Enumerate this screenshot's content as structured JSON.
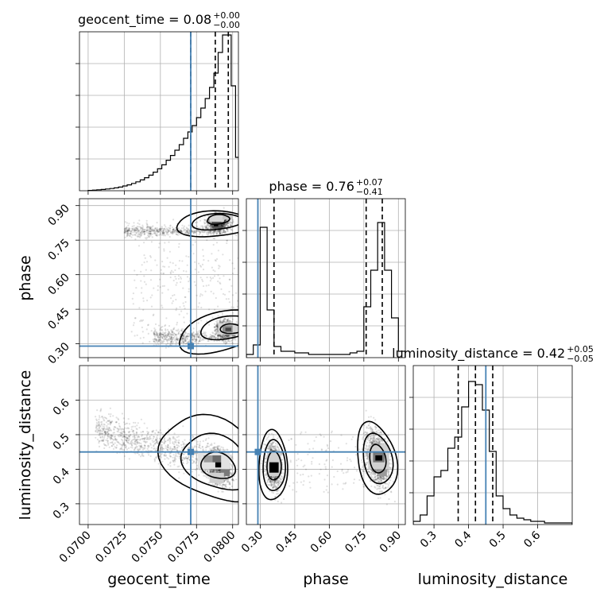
{
  "chart_data": {
    "type": "corner",
    "parameters": [
      "geocent_time",
      "phase",
      "luminosity_distance"
    ],
    "truth_color": "#4682b4",
    "panels": {
      "diag": [
        {
          "param": "geocent_time",
          "title_prefix": "geocent_time = 0.08",
          "title_sup": "+0.00",
          "title_sub": "−0.00",
          "xlim": [
            0.0694,
            0.0804
          ],
          "ylim": [
            0,
            1.0
          ],
          "bin_edges": [
            0.07,
            0.0703,
            0.0706,
            0.0709,
            0.0712,
            0.0715,
            0.0718,
            0.0721,
            0.0724,
            0.0727,
            0.073,
            0.0733,
            0.0736,
            0.0739,
            0.0742,
            0.0745,
            0.0748,
            0.0751,
            0.0754,
            0.0757,
            0.076,
            0.0763,
            0.0766,
            0.0769,
            0.0772,
            0.0775,
            0.0778,
            0.0781,
            0.0784,
            0.0787,
            0.079,
            0.0793,
            0.0796,
            0.0799,
            0.0802,
            0.0805
          ],
          "counts": [
            0.002,
            0.004,
            0.006,
            0.008,
            0.011,
            0.014,
            0.018,
            0.023,
            0.03,
            0.037,
            0.046,
            0.056,
            0.068,
            0.082,
            0.098,
            0.117,
            0.138,
            0.163,
            0.192,
            0.222,
            0.255,
            0.29,
            0.33,
            0.37,
            0.41,
            0.46,
            0.52,
            0.58,
            0.65,
            0.74,
            0.87,
            0.98,
            0.98,
            0.66,
            0.21
          ],
          "quantiles": [
            0.0771,
            0.0788,
            0.0797
          ],
          "truth": 0.0771,
          "yticks": [
            0.2,
            0.4,
            0.6,
            0.8
          ]
        },
        {
          "param": "phase",
          "title_prefix": "phase = 0.76",
          "title_sup": "+0.07",
          "title_sub": "−0.41",
          "xlim": [
            0.24,
            0.93
          ],
          "ylim": [
            0,
            1.0
          ],
          "bin_edges": [
            0.24,
            0.27,
            0.3,
            0.33,
            0.36,
            0.39,
            0.42,
            0.45,
            0.48,
            0.51,
            0.54,
            0.57,
            0.6,
            0.63,
            0.66,
            0.69,
            0.72,
            0.75,
            0.78,
            0.81,
            0.84,
            0.87,
            0.9,
            0.93
          ],
          "counts": [
            0.02,
            0.08,
            0.82,
            0.3,
            0.07,
            0.04,
            0.04,
            0.03,
            0.03,
            0.02,
            0.02,
            0.02,
            0.02,
            0.02,
            0.02,
            0.03,
            0.04,
            0.32,
            0.55,
            0.85,
            0.55,
            0.25,
            0.04
          ],
          "quantiles": [
            0.36,
            0.76,
            0.83
          ],
          "truth": 0.29,
          "yticks": [
            0.2,
            0.4,
            0.6,
            0.8
          ]
        },
        {
          "param": "luminosity_distance",
          "title_prefix": "luminosity_distance = 0.42",
          "title_sup": "+0.05",
          "title_sub": "−0.05",
          "xlim": [
            0.24,
            0.7
          ],
          "ylim": [
            0,
            1.0
          ],
          "bin_edges": [
            0.24,
            0.26,
            0.28,
            0.3,
            0.32,
            0.34,
            0.36,
            0.38,
            0.4,
            0.42,
            0.44,
            0.46,
            0.48,
            0.5,
            0.52,
            0.54,
            0.56,
            0.58,
            0.6,
            0.62,
            0.64,
            0.66,
            0.68,
            0.7
          ],
          "counts": [
            0.02,
            0.06,
            0.18,
            0.3,
            0.34,
            0.48,
            0.55,
            0.74,
            0.9,
            0.88,
            0.72,
            0.46,
            0.18,
            0.1,
            0.06,
            0.04,
            0.03,
            0.02,
            0.02,
            0.01,
            0.01,
            0.01,
            0.01
          ],
          "quantiles": [
            0.37,
            0.42,
            0.47
          ],
          "truth": 0.45,
          "yticks": [
            0.2,
            0.4,
            0.6,
            0.8
          ]
        }
      ],
      "off": [
        {
          "x": "geocent_time",
          "y": "phase",
          "truth": [
            0.0771,
            0.29
          ]
        },
        {
          "x": "geocent_time",
          "y": "luminosity_distance",
          "truth": [
            0.0771,
            0.45
          ]
        },
        {
          "x": "phase",
          "y": "luminosity_distance",
          "truth": [
            0.29,
            0.45
          ]
        }
      ]
    },
    "axes": {
      "geocent_time": {
        "lim": [
          0.0694,
          0.0804
        ],
        "ticks": [
          0.07,
          0.0725,
          0.075,
          0.0775,
          0.08
        ],
        "ticklabels": [
          "0.0700",
          "0.0725",
          "0.0750",
          "0.0775",
          "0.0800"
        ],
        "label": "geocent_time"
      },
      "phase": {
        "lim": [
          0.24,
          0.93
        ],
        "ticks": [
          0.3,
          0.45,
          0.6,
          0.75,
          0.9
        ],
        "ticklabels": [
          "0.30",
          "0.45",
          "0.60",
          "0.75",
          "0.90"
        ],
        "label": "phase"
      },
      "luminosity_distance": {
        "lim": [
          0.24,
          0.7
        ],
        "ticks": [
          0.3,
          0.4,
          0.5,
          0.6
        ],
        "ticklabels": [
          "0.3",
          "0.4",
          "0.5",
          "0.6"
        ],
        "label": "luminosity_distance"
      }
    },
    "grid": true
  }
}
